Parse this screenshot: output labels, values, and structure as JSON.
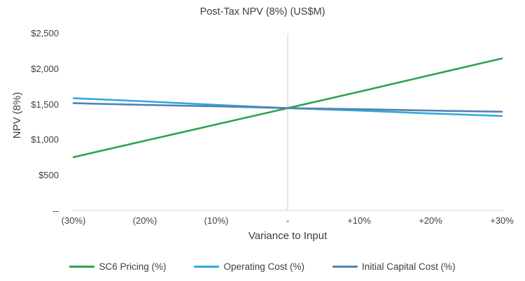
{
  "chart_data": {
    "type": "line",
    "title": "Post-Tax NPV (8%) (US$M)",
    "xlabel": "Variance to Input",
    "ylabel": "NPV (8%)",
    "categories": [
      "(30%)",
      "(20%)",
      "(10%)",
      "-",
      "+10%",
      "+20%",
      "+30%"
    ],
    "y_ticks": [
      {
        "label": "$2,500",
        "value": 2500
      },
      {
        "label": "$2,000",
        "value": 2000
      },
      {
        "label": "$1,500",
        "value": 1500
      },
      {
        "label": "$1,000",
        "value": 1000
      },
      {
        "label": "$500",
        "value": 500
      },
      {
        "label": "--",
        "value": 0
      }
    ],
    "ylim": [
      0,
      2500
    ],
    "grid": "single vertical gridline at zero-variance center",
    "legend_position": "bottom",
    "axis_color": "#d9d9d9",
    "text_color": "#404040",
    "series": [
      {
        "name": "SC6 Pricing (%)",
        "color": "#2da44e",
        "values": [
          760,
          990,
          1220,
          1450,
          1680,
          1915,
          2150
        ]
      },
      {
        "name": "Operating Cost (%)",
        "color": "#2fa9e0",
        "values": [
          1590,
          1545,
          1495,
          1450,
          1415,
          1375,
          1340
        ]
      },
      {
        "name": "Initial Capital Cost (%)",
        "color": "#5581ae",
        "values": [
          1520,
          1495,
          1475,
          1450,
          1435,
          1415,
          1400
        ]
      }
    ]
  }
}
